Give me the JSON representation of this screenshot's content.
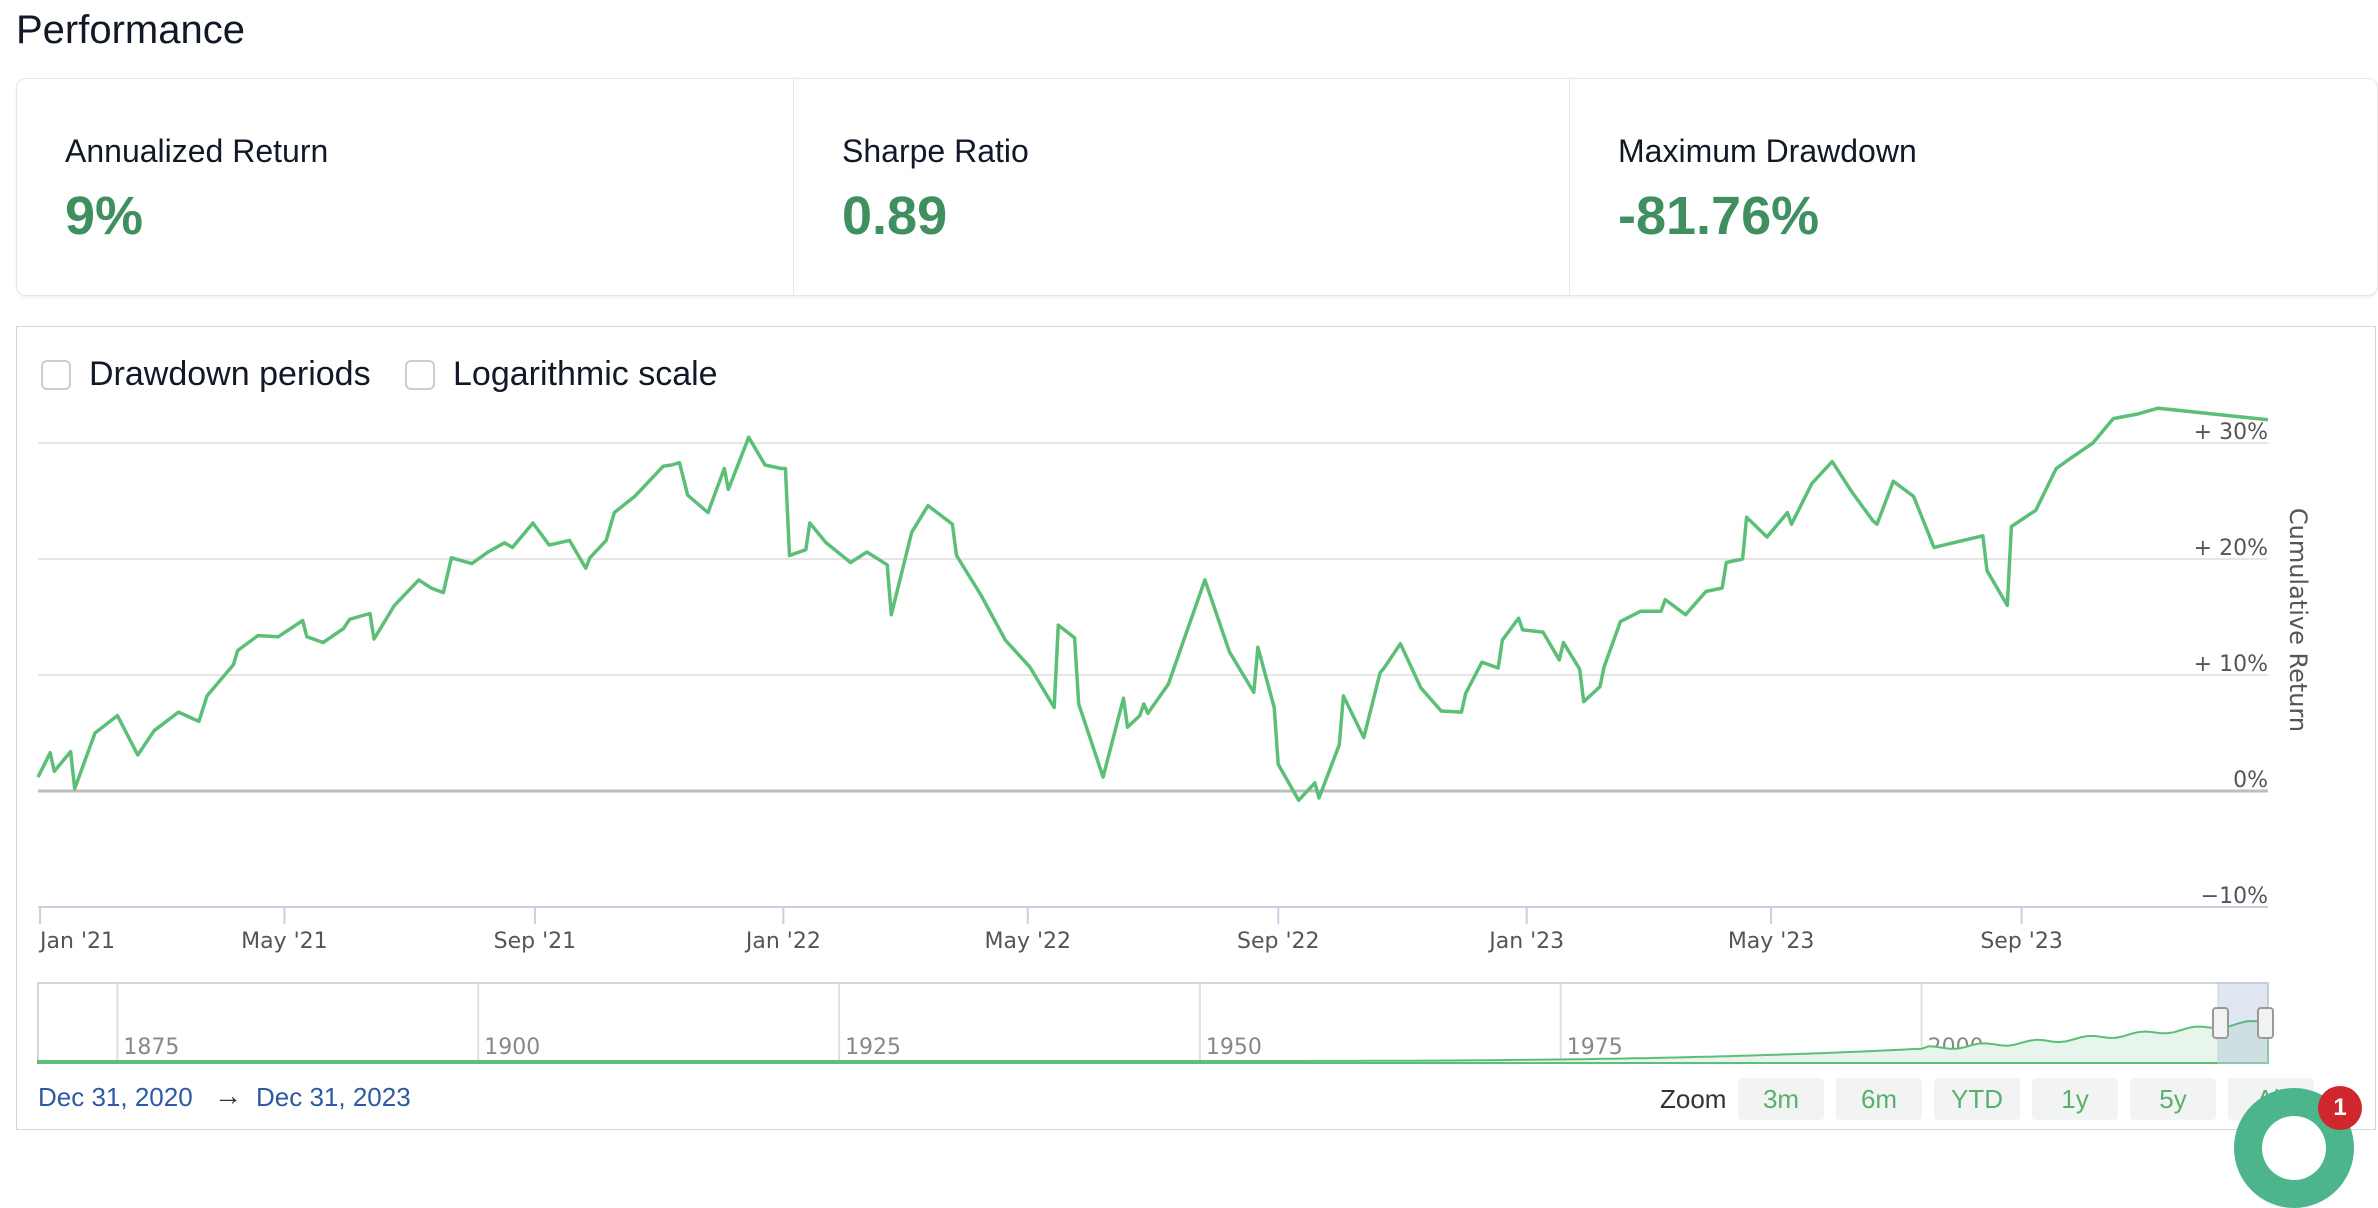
{
  "page": {
    "title": "Performance"
  },
  "metrics": [
    {
      "label": "Annualized Return",
      "value": "9%"
    },
    {
      "label": "Sharpe Ratio",
      "value": "0.89"
    },
    {
      "label": "Maximum Drawdown",
      "value": "-81.76%"
    }
  ],
  "options": {
    "drawdown": {
      "label": "Drawdown periods",
      "checked": false
    },
    "log": {
      "label": "Logarithmic scale",
      "checked": false
    }
  },
  "colors": {
    "line": "#5cbf77",
    "value": "#3f8f61",
    "range_link": "#2e5aa4",
    "badge": "#d0262d"
  },
  "chart_data": {
    "type": "line",
    "ylabel": "Cumulative Return",
    "ylim": [
      -10,
      33
    ],
    "y_ticks": [
      "+ 30%",
      "+ 20%",
      "+ 10%",
      "0%",
      "−10%"
    ],
    "y_tick_values": [
      30,
      20,
      10,
      0,
      -10
    ],
    "x_ticks": [
      "Jan '21",
      "May '21",
      "Sep '21",
      "Jan '22",
      "May '22",
      "Sep '22",
      "Jan '23",
      "May '23",
      "Sep '23"
    ],
    "x_tick_dates": [
      "2021-01-01",
      "2021-05-01",
      "2021-09-01",
      "2022-01-01",
      "2022-05-01",
      "2022-09-01",
      "2023-01-01",
      "2023-05-01",
      "2023-09-01"
    ],
    "x_range": [
      "2020-12-31",
      "2023-12-31"
    ],
    "grid": true,
    "series": [
      {
        "values": [
          [
            "2020-12-31",
            1.2
          ],
          [
            "2021-01-06",
            3.3
          ],
          [
            "2021-01-08",
            1.7
          ],
          [
            "2021-01-16",
            3.4
          ],
          [
            "2021-01-18",
            0.2
          ],
          [
            "2021-01-28",
            5.0
          ],
          [
            "2021-02-08",
            6.5
          ],
          [
            "2021-02-18",
            3.1
          ],
          [
            "2021-02-26",
            5.2
          ],
          [
            "2021-03-10",
            6.8
          ],
          [
            "2021-03-20",
            6.0
          ],
          [
            "2021-03-24",
            8.2
          ],
          [
            "2021-04-06",
            10.9
          ],
          [
            "2021-04-08",
            12.1
          ],
          [
            "2021-04-18",
            13.4
          ],
          [
            "2021-04-28",
            13.3
          ],
          [
            "2021-05-10",
            14.7
          ],
          [
            "2021-05-12",
            13.3
          ],
          [
            "2021-05-20",
            12.8
          ],
          [
            "2021-05-30",
            14.0
          ],
          [
            "2021-06-02",
            14.8
          ],
          [
            "2021-06-12",
            15.3
          ],
          [
            "2021-06-14",
            13.1
          ],
          [
            "2021-06-24",
            16.0
          ],
          [
            "2021-07-06",
            18.2
          ],
          [
            "2021-07-12",
            17.5
          ],
          [
            "2021-07-18",
            17.1
          ],
          [
            "2021-07-22",
            20.1
          ],
          [
            "2021-08-01",
            19.6
          ],
          [
            "2021-08-09",
            20.6
          ],
          [
            "2021-08-17",
            21.4
          ],
          [
            "2021-08-21",
            21.0
          ],
          [
            "2021-08-31",
            23.1
          ],
          [
            "2021-09-08",
            21.2
          ],
          [
            "2021-09-18",
            21.6
          ],
          [
            "2021-09-26",
            19.2
          ],
          [
            "2021-09-28",
            20.1
          ],
          [
            "2021-10-06",
            21.6
          ],
          [
            "2021-10-10",
            24.0
          ],
          [
            "2021-10-20",
            25.4
          ],
          [
            "2021-10-26",
            26.5
          ],
          [
            "2021-11-03",
            28.0
          ],
          [
            "2021-11-07",
            28.1
          ],
          [
            "2021-11-11",
            28.3
          ],
          [
            "2021-11-15",
            25.5
          ],
          [
            "2021-11-25",
            24.0
          ],
          [
            "2021-12-03",
            27.8
          ],
          [
            "2021-12-05",
            26.0
          ],
          [
            "2021-12-15",
            30.5
          ],
          [
            "2021-12-23",
            28.1
          ],
          [
            "2021-12-31",
            27.8
          ],
          [
            "2022-01-02",
            27.8
          ],
          [
            "2022-01-04",
            20.3
          ],
          [
            "2022-01-12",
            20.8
          ],
          [
            "2022-01-14",
            23.1
          ],
          [
            "2022-01-22",
            21.4
          ],
          [
            "2022-02-03",
            19.7
          ],
          [
            "2022-02-11",
            20.6
          ],
          [
            "2022-02-21",
            19.5
          ],
          [
            "2022-02-23",
            15.2
          ],
          [
            "2022-03-05",
            22.3
          ],
          [
            "2022-03-13",
            24.6
          ],
          [
            "2022-03-25",
            23.0
          ],
          [
            "2022-03-27",
            20.3
          ],
          [
            "2022-04-08",
            16.9
          ],
          [
            "2022-04-20",
            13.0
          ],
          [
            "2022-05-02",
            10.7
          ],
          [
            "2022-05-14",
            7.2
          ],
          [
            "2022-05-16",
            14.3
          ],
          [
            "2022-05-24",
            13.2
          ],
          [
            "2022-05-26",
            7.5
          ],
          [
            "2022-06-07",
            1.2
          ],
          [
            "2022-06-17",
            8.0
          ],
          [
            "2022-06-19",
            5.5
          ],
          [
            "2022-06-25",
            6.5
          ],
          [
            "2022-06-27",
            7.5
          ],
          [
            "2022-06-29",
            6.7
          ],
          [
            "2022-07-09",
            9.2
          ],
          [
            "2022-07-19",
            14.2
          ],
          [
            "2022-07-27",
            18.2
          ],
          [
            "2022-08-08",
            12.0
          ],
          [
            "2022-08-20",
            8.5
          ],
          [
            "2022-08-22",
            12.4
          ],
          [
            "2022-08-30",
            7.2
          ],
          [
            "2022-09-01",
            2.3
          ],
          [
            "2022-09-11",
            -0.8
          ],
          [
            "2022-09-19",
            0.7
          ],
          [
            "2022-09-21",
            -0.6
          ],
          [
            "2022-10-01",
            4.0
          ],
          [
            "2022-10-03",
            8.2
          ],
          [
            "2022-10-13",
            4.6
          ],
          [
            "2022-10-21",
            10.2
          ],
          [
            "2022-10-23",
            10.6
          ],
          [
            "2022-10-31",
            12.7
          ],
          [
            "2022-11-10",
            8.9
          ],
          [
            "2022-11-20",
            6.9
          ],
          [
            "2022-11-30",
            6.8
          ],
          [
            "2022-12-02",
            8.4
          ],
          [
            "2022-12-10",
            11.1
          ],
          [
            "2022-12-18",
            10.6
          ],
          [
            "2022-12-20",
            13.0
          ],
          [
            "2022-12-28",
            14.9
          ],
          [
            "2022-12-30",
            13.9
          ],
          [
            "2023-01-09",
            13.7
          ],
          [
            "2023-01-17",
            11.3
          ],
          [
            "2023-01-19",
            12.8
          ],
          [
            "2023-01-27",
            10.5
          ],
          [
            "2023-01-29",
            7.7
          ],
          [
            "2023-02-06",
            9.0
          ],
          [
            "2023-02-08",
            10.7
          ],
          [
            "2023-02-16",
            14.6
          ],
          [
            "2023-02-26",
            15.5
          ],
          [
            "2023-03-08",
            15.5
          ],
          [
            "2023-03-10",
            16.5
          ],
          [
            "2023-03-20",
            15.2
          ],
          [
            "2023-03-30",
            17.2
          ],
          [
            "2023-04-07",
            17.5
          ],
          [
            "2023-04-09",
            19.7
          ],
          [
            "2023-04-17",
            20.0
          ],
          [
            "2023-04-19",
            23.6
          ],
          [
            "2023-04-29",
            21.9
          ],
          [
            "2023-05-09",
            24.0
          ],
          [
            "2023-05-11",
            23.0
          ],
          [
            "2023-05-21",
            26.5
          ],
          [
            "2023-05-31",
            28.4
          ],
          [
            "2023-06-10",
            25.7
          ],
          [
            "2023-06-20",
            23.3
          ],
          [
            "2023-06-22",
            23.0
          ],
          [
            "2023-06-30",
            26.7
          ],
          [
            "2023-07-10",
            25.4
          ],
          [
            "2023-07-20",
            21.0
          ],
          [
            "2023-08-01",
            21.5
          ],
          [
            "2023-08-13",
            22.0
          ],
          [
            "2023-08-15",
            19.0
          ],
          [
            "2023-08-25",
            16.0
          ],
          [
            "2023-08-27",
            22.8
          ],
          [
            "2023-09-08",
            24.2
          ],
          [
            "2023-09-18",
            27.8
          ],
          [
            "2023-09-26",
            28.8
          ],
          [
            "2023-10-06",
            30.0
          ],
          [
            "2023-10-16",
            32.1
          ],
          [
            "2023-10-28",
            32.5
          ],
          [
            "2023-11-07",
            33.0
          ],
          [
            "2023-12-31",
            32.0
          ]
        ]
      }
    ],
    "navigator": {
      "ticks": [
        "1875",
        "1900",
        "1925",
        "1950",
        "1975",
        "2000"
      ],
      "tick_years": [
        1875,
        1900,
        1925,
        1950,
        1975,
        2000
      ],
      "x_range_years": [
        1869.5,
        2024
      ]
    }
  },
  "range": {
    "from": "Dec 31, 2020",
    "arrow": "→",
    "to": "Dec 31, 2023"
  },
  "zoom": {
    "label": "Zoom",
    "buttons": [
      "3m",
      "6m",
      "YTD",
      "1y",
      "5y",
      "All"
    ]
  },
  "notifications": {
    "count": "1"
  }
}
